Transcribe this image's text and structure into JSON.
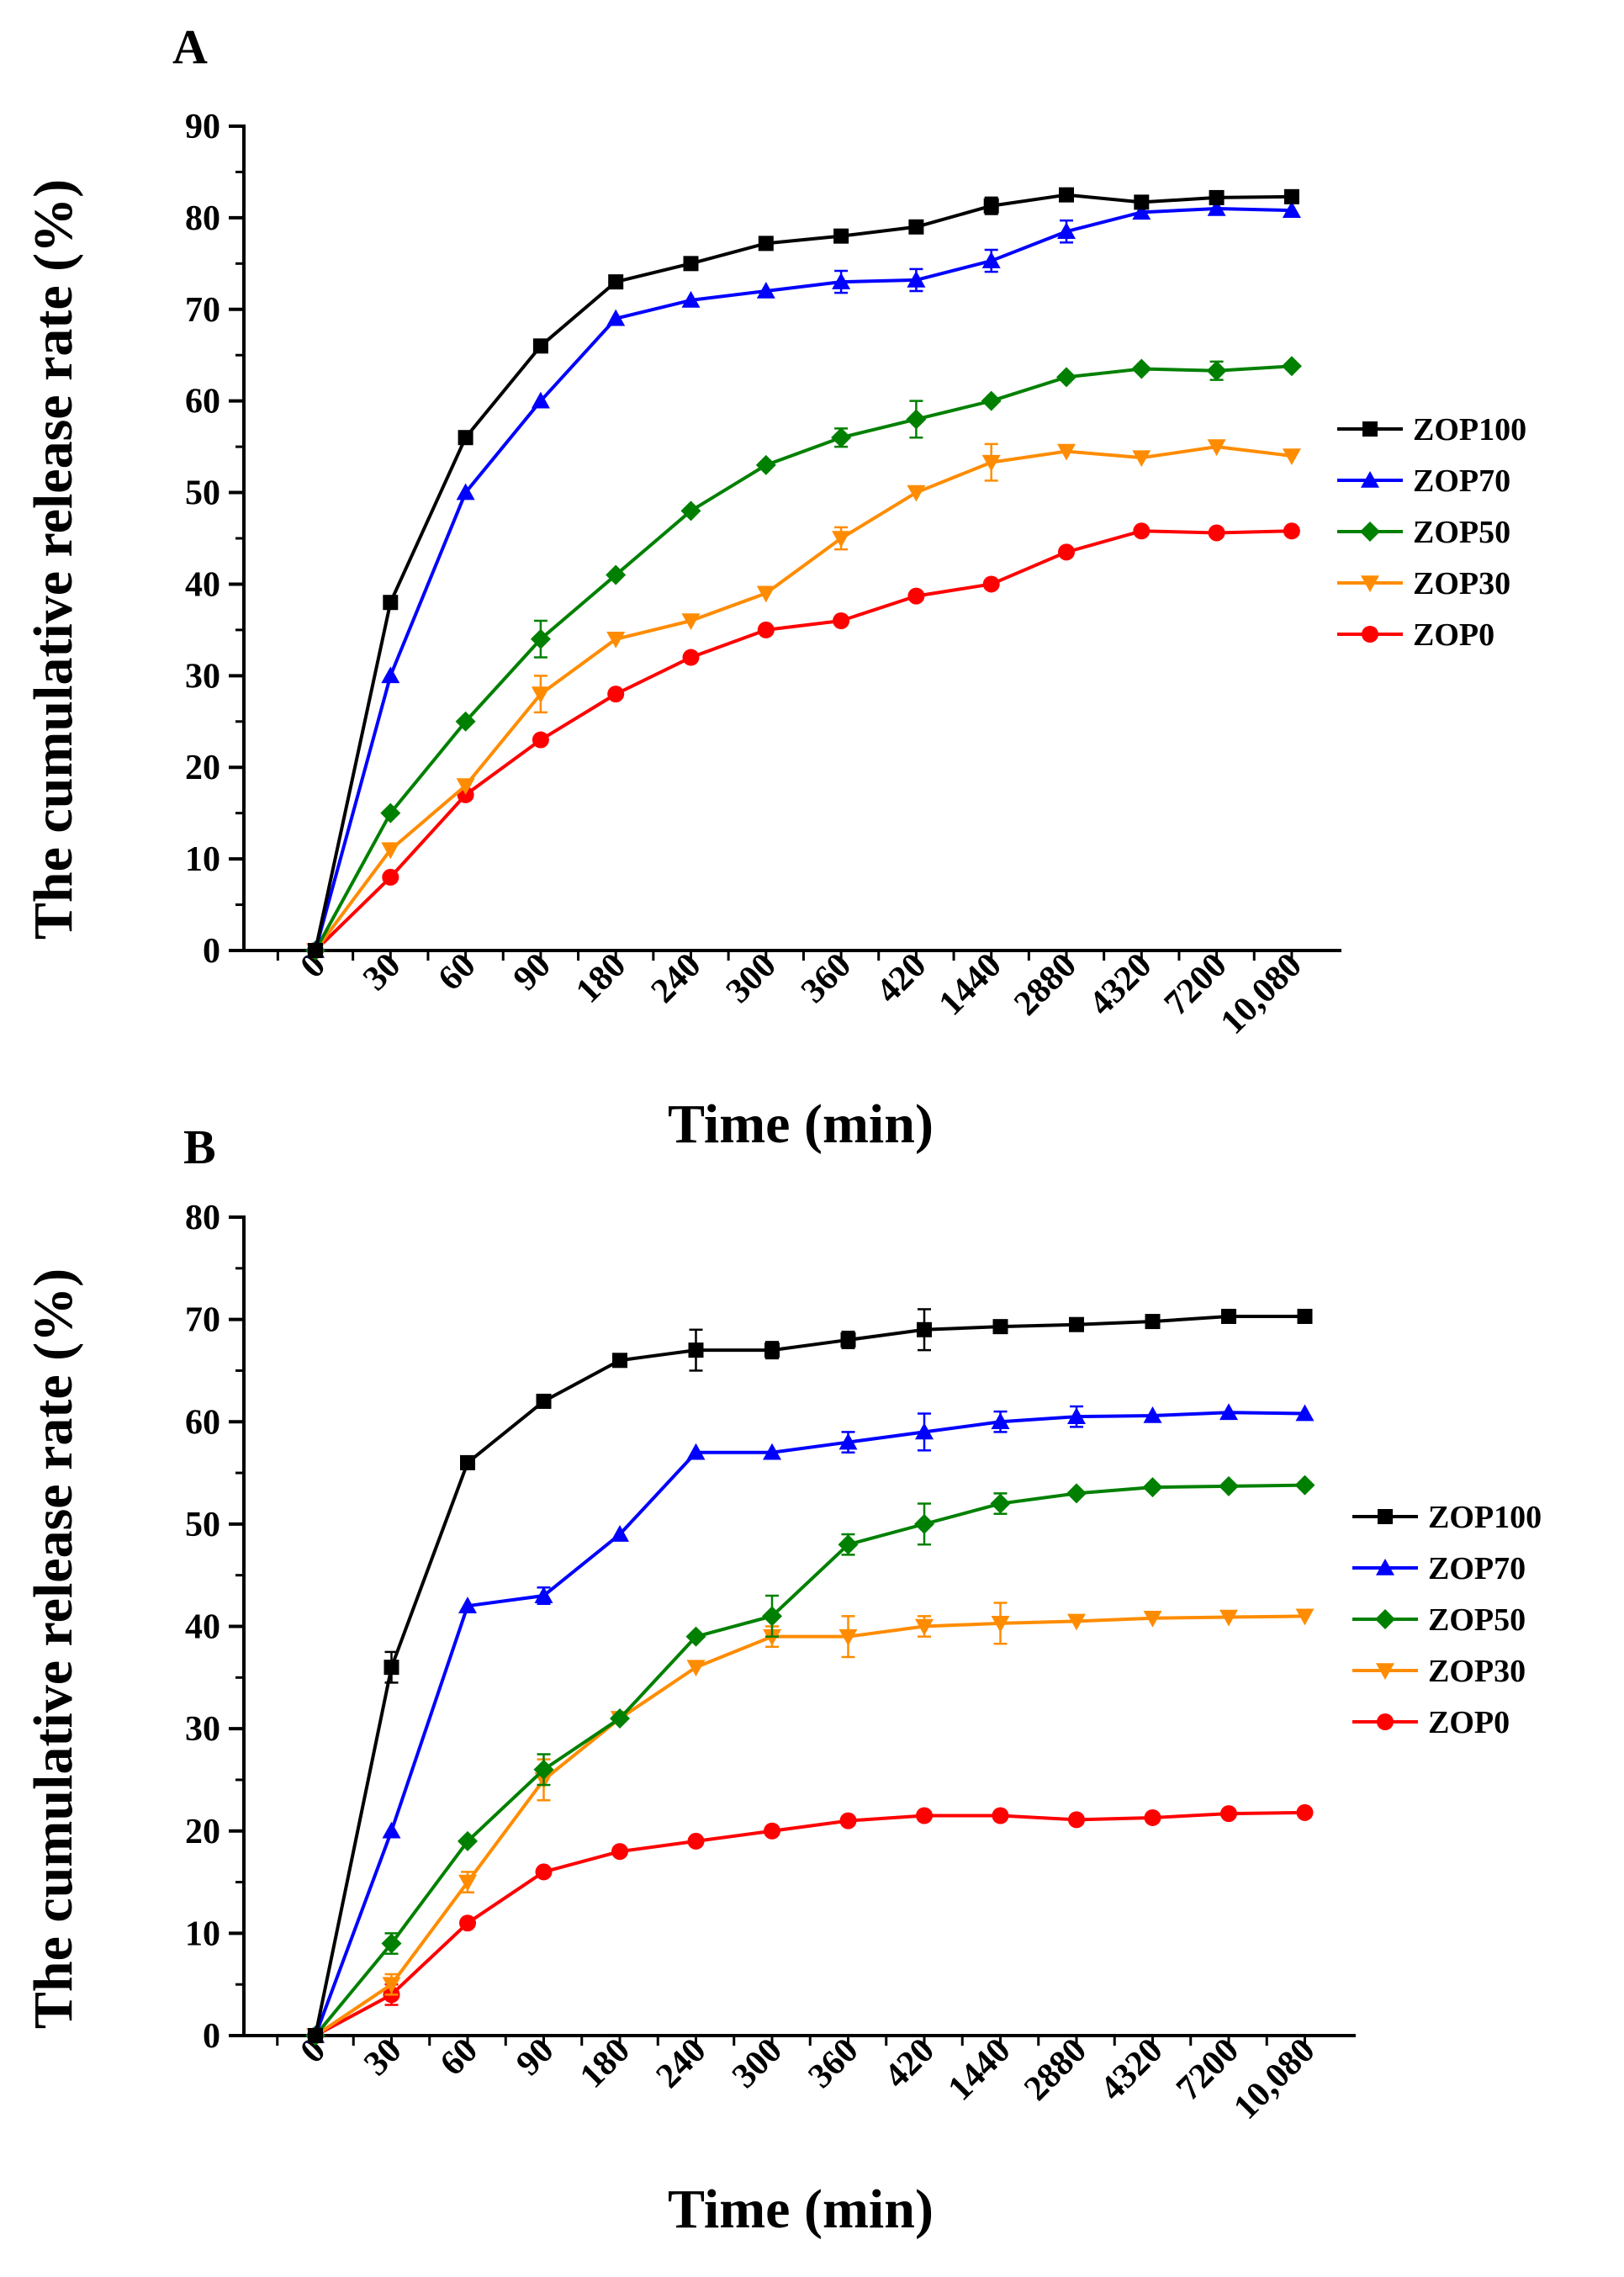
{
  "chart_data": [
    {
      "panel": "A",
      "type": "line",
      "ylabel": "The cumulative release rate (%)",
      "xlabel": "Time (min)",
      "categories": [
        "0",
        "30",
        "60",
        "90",
        "180",
        "240",
        "300",
        "360",
        "420",
        "1440",
        "2880",
        "4320",
        "7200",
        "10,080"
      ],
      "ylim": [
        0,
        90
      ],
      "yticks": [
        0,
        10,
        20,
        30,
        40,
        50,
        60,
        70,
        80,
        90
      ],
      "series": [
        {
          "name": "ZOP100",
          "color": "#000000",
          "marker": "square",
          "values": [
            0,
            38,
            56,
            66,
            73,
            75,
            77.2,
            78,
            79,
            81.3,
            82.5,
            81.7,
            82.2,
            82.3
          ],
          "errors": [
            0,
            0,
            0,
            0,
            0,
            0,
            0,
            0,
            0,
            0.9,
            0,
            0,
            0,
            0
          ]
        },
        {
          "name": "ZOP70",
          "color": "#0000ff",
          "marker": "triangle-up",
          "values": [
            0,
            30,
            50,
            60,
            69,
            71,
            72,
            73,
            73.2,
            75.3,
            78.5,
            80.6,
            81,
            80.8
          ],
          "errors": [
            0,
            0,
            0,
            0,
            0,
            0,
            0,
            1.2,
            1.2,
            1.2,
            1.2,
            0,
            0,
            0
          ]
        },
        {
          "name": "ZOP50",
          "color": "#008000",
          "marker": "diamond",
          "values": [
            0,
            15,
            25,
            34,
            41,
            48,
            53,
            56,
            58,
            60,
            62.6,
            63.5,
            63.3,
            63.8
          ],
          "errors": [
            0,
            0,
            0,
            2,
            0,
            0,
            0,
            1,
            2,
            0,
            0,
            0,
            1,
            0
          ]
        },
        {
          "name": "ZOP30",
          "color": "#ff8c00",
          "marker": "triangle-down",
          "values": [
            0,
            11,
            18,
            28,
            34,
            36,
            39,
            45,
            50,
            53.3,
            54.5,
            53.8,
            55,
            54
          ],
          "errors": [
            0,
            0,
            0,
            2,
            0,
            0,
            0,
            1.2,
            0,
            2,
            0,
            0,
            0,
            0
          ]
        },
        {
          "name": "ZOP0",
          "color": "#ff0000",
          "marker": "circle",
          "values": [
            0,
            8,
            17,
            23,
            28,
            32,
            35,
            36,
            38.7,
            40,
            43.5,
            45.8,
            45.6,
            45.8
          ],
          "errors": [
            0,
            0,
            0,
            0,
            0,
            0,
            0,
            0,
            0,
            0,
            0,
            0,
            0,
            0
          ]
        }
      ]
    },
    {
      "panel": "B",
      "type": "line",
      "ylabel": "The cumulative release rate (%)",
      "xlabel": "Time (min)",
      "categories": [
        "0",
        "30",
        "60",
        "90",
        "180",
        "240",
        "300",
        "360",
        "420",
        "1440",
        "2880",
        "4320",
        "7200",
        "10,080"
      ],
      "ylim": [
        0,
        80
      ],
      "yticks": [
        0,
        10,
        20,
        30,
        40,
        50,
        60,
        70,
        80
      ],
      "series": [
        {
          "name": "ZOP100",
          "color": "#000000",
          "marker": "square",
          "values": [
            0,
            36,
            56,
            62,
            66,
            67,
            67,
            68,
            69,
            69.3,
            69.5,
            69.8,
            70.3,
            70.3
          ],
          "errors": [
            0,
            1.5,
            0,
            0,
            0,
            2,
            0.8,
            0.8,
            2,
            0,
            0,
            0,
            0,
            0
          ]
        },
        {
          "name": "ZOP70",
          "color": "#0000ff",
          "marker": "triangle-up",
          "values": [
            0,
            20,
            42,
            43,
            49,
            57,
            57,
            58,
            59,
            60,
            60.5,
            60.6,
            60.9,
            60.8
          ],
          "errors": [
            0,
            0,
            0,
            0.8,
            0,
            0,
            0,
            1,
            1.8,
            1,
            1,
            0,
            0,
            0
          ]
        },
        {
          "name": "ZOP50",
          "color": "#008000",
          "marker": "diamond",
          "values": [
            0,
            9,
            19,
            26,
            31,
            39,
            41,
            48,
            50,
            52,
            53,
            53.6,
            53.7,
            53.8
          ],
          "errors": [
            0,
            1,
            0,
            1.5,
            0,
            0,
            2,
            1,
            2,
            1,
            0,
            0,
            0,
            0
          ]
        },
        {
          "name": "ZOP30",
          "color": "#ff8c00",
          "marker": "triangle-down",
          "values": [
            0,
            5,
            15,
            25,
            31,
            36,
            39,
            39,
            40,
            40.3,
            40.5,
            40.8,
            40.9,
            41
          ],
          "errors": [
            0,
            1,
            1,
            2,
            0,
            0,
            1,
            2,
            1,
            2,
            0,
            0,
            0,
            0
          ]
        },
        {
          "name": "ZOP0",
          "color": "#ff0000",
          "marker": "circle",
          "values": [
            0,
            4,
            11,
            16,
            18,
            19,
            20,
            21,
            21.5,
            21.5,
            21.1,
            21.3,
            21.7,
            21.8
          ],
          "errors": [
            0,
            1,
            0,
            0,
            0,
            0,
            0,
            0,
            0,
            0,
            0,
            0,
            0,
            0
          ]
        }
      ]
    }
  ]
}
